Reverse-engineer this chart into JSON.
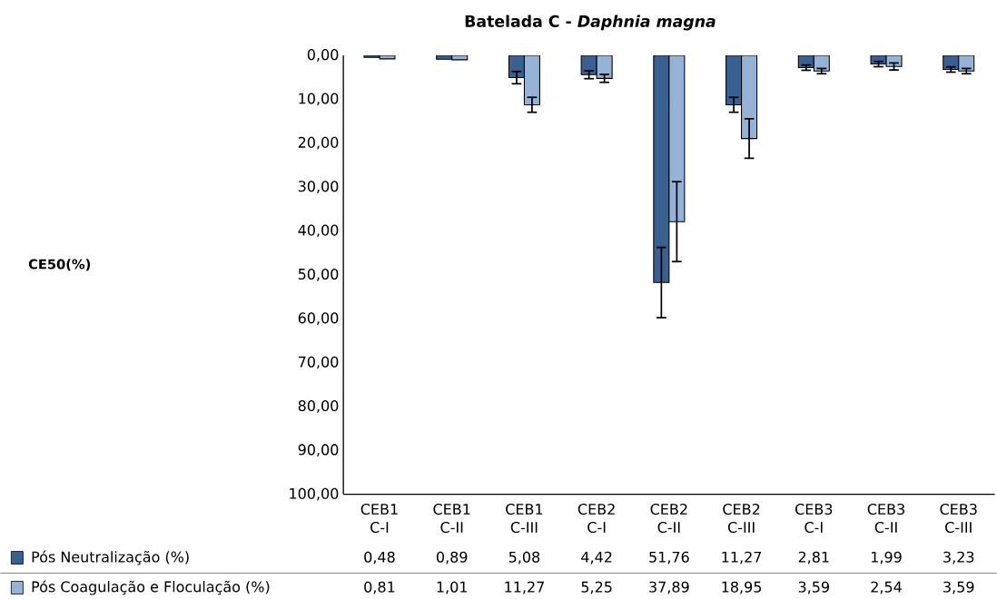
{
  "chart_data": {
    "type": "bar",
    "title": "Batelada C - *Daphnia magna*",
    "annotations": [
      "CE50(%)"
    ],
    "categories": [
      "CEB1 C-I",
      "CEB1 C-II",
      "CEB1 C-III",
      "CEB2 C-I",
      "CEB2 C-II",
      "CEB2 C-III",
      "CEB3 C-I",
      "CEB3 C-II",
      "CEB3 C-III"
    ],
    "series": [
      {
        "name": "Pós Neutralização (%)",
        "color": "#386192",
        "values": [
          0.48,
          0.89,
          5.08,
          4.42,
          51.76,
          11.27,
          2.81,
          1.99,
          3.23
        ],
        "errors": [
          null,
          null,
          1.4,
          0.9,
          8.0,
          1.7,
          0.6,
          0.6,
          0.6
        ],
        "value_labels": [
          "0,48",
          "0,89",
          "5,08",
          "4,42",
          "51,76",
          "11,27",
          "2,81",
          "1,99",
          "3,23"
        ]
      },
      {
        "name": "Pós Coagulação e Floculação (%)",
        "color": "#95b3d7",
        "values": [
          0.81,
          1.01,
          11.27,
          5.25,
          37.89,
          18.95,
          3.59,
          2.54,
          3.59
        ],
        "errors": [
          null,
          null,
          1.7,
          0.9,
          9.1,
          4.5,
          0.6,
          0.8,
          0.6
        ],
        "value_labels": [
          "0,81",
          "1,01",
          "11,27",
          "5,25",
          "37,89",
          "18,95",
          "3,59",
          "2,54",
          "3,59"
        ]
      }
    ],
    "ylim": [
      100,
      0
    ],
    "yticks": [
      {
        "value": 0,
        "label": "0,00"
      },
      {
        "value": 10,
        "label": "10,00"
      },
      {
        "value": 20,
        "label": "20,00"
      },
      {
        "value": 30,
        "label": "30,00"
      },
      {
        "value": 40,
        "label": "40,00"
      },
      {
        "value": 50,
        "label": "50,00"
      },
      {
        "value": 60,
        "label": "60,00"
      },
      {
        "value": 70,
        "label": "70,00"
      },
      {
        "value": 80,
        "label": "80,00"
      },
      {
        "value": 90,
        "label": "90,00"
      },
      {
        "value": 100,
        "label": "100,00"
      }
    ],
    "grid": false,
    "legend": "bottom"
  }
}
